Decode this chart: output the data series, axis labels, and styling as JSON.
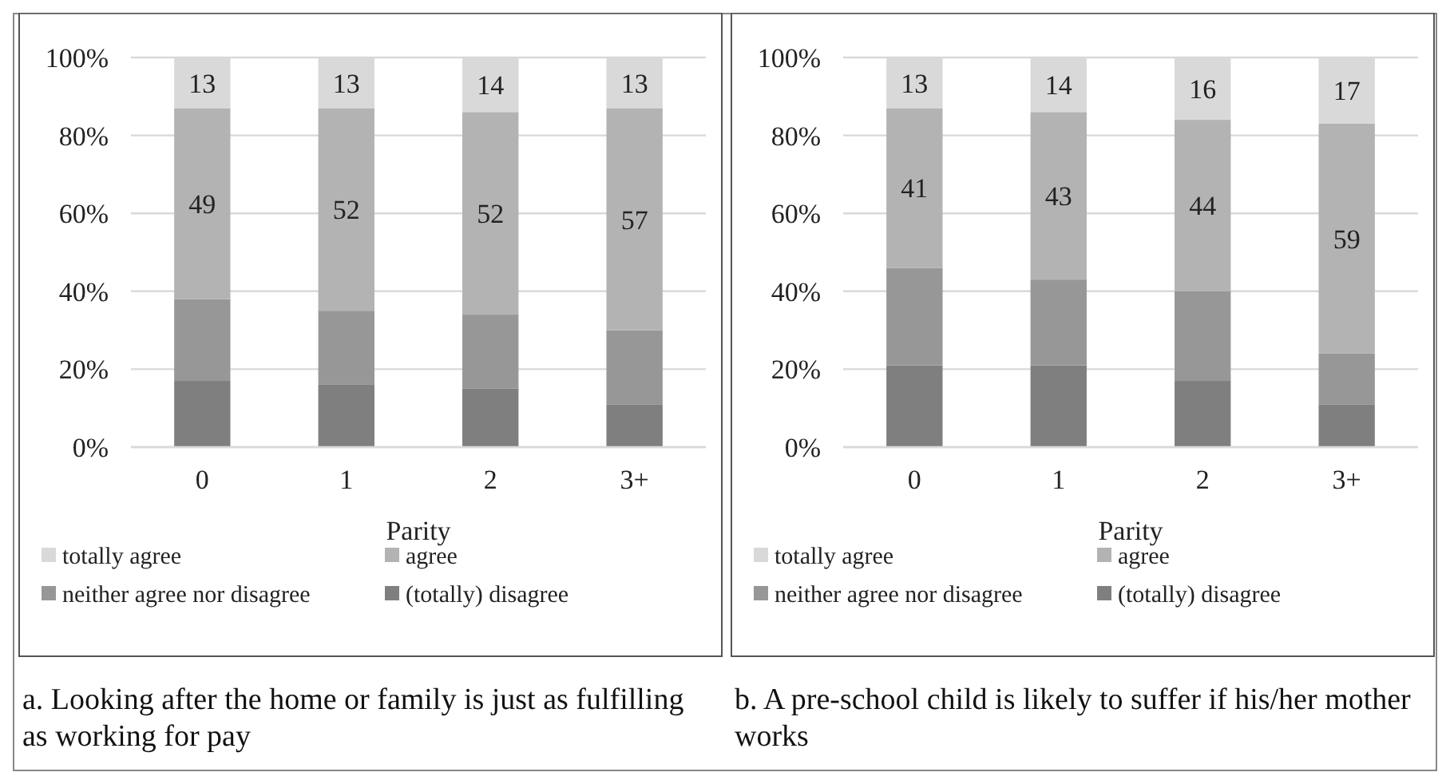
{
  "chart_data": [
    {
      "type": "bar",
      "stacked": true,
      "title": "a. Looking after the home or family is just as fulfilling as working for pay",
      "xlabel": "Parity",
      "categories": [
        "0",
        "1",
        "2",
        "3+"
      ],
      "ylim": [
        0,
        100
      ],
      "yticks": [
        {
          "value": 0,
          "label": "0%"
        },
        {
          "value": 20,
          "label": "20%"
        },
        {
          "value": 40,
          "label": "40%"
        },
        {
          "value": 60,
          "label": "60%"
        },
        {
          "value": 80,
          "label": "80%"
        },
        {
          "value": 100,
          "label": "100%"
        }
      ],
      "grid": "y",
      "legend": "bottom",
      "series": [
        {
          "name": "(totally) disagree",
          "color": "#7f7f7f",
          "values": [
            17,
            16,
            15,
            11
          ]
        },
        {
          "name": "neither agree nor disagree",
          "color": "#979797",
          "values": [
            21,
            19,
            19,
            19
          ]
        },
        {
          "name": "agree",
          "color": "#b3b3b3",
          "values": [
            49,
            52,
            52,
            57
          ],
          "value_labels": [
            "49",
            "52",
            "52",
            "57"
          ]
        },
        {
          "name": "totally agree",
          "color": "#d9d9d9",
          "values": [
            13,
            13,
            14,
            13
          ],
          "value_labels": [
            "13",
            "13",
            "14",
            "13"
          ]
        }
      ]
    },
    {
      "type": "bar",
      "stacked": true,
      "title": "b. A pre-school child is likely to suffer if his/her mother works",
      "xlabel": "Parity",
      "categories": [
        "0",
        "1",
        "2",
        "3+"
      ],
      "ylim": [
        0,
        100
      ],
      "yticks": [
        {
          "value": 0,
          "label": "0%"
        },
        {
          "value": 20,
          "label": "20%"
        },
        {
          "value": 40,
          "label": "40%"
        },
        {
          "value": 60,
          "label": "60%"
        },
        {
          "value": 80,
          "label": "80%"
        },
        {
          "value": 100,
          "label": "100%"
        }
      ],
      "grid": "y",
      "legend": "bottom",
      "series": [
        {
          "name": "(totally) disagree",
          "color": "#7f7f7f",
          "values": [
            21,
            21,
            17,
            11
          ]
        },
        {
          "name": "neither agree nor disagree",
          "color": "#979797",
          "values": [
            25,
            22,
            23,
            13
          ]
        },
        {
          "name": "agree",
          "color": "#b3b3b3",
          "values": [
            41,
            43,
            44,
            59
          ],
          "value_labels": [
            "41",
            "43",
            "44",
            "59"
          ]
        },
        {
          "name": "totally agree",
          "color": "#d9d9d9",
          "values": [
            13,
            14,
            16,
            17
          ],
          "value_labels": [
            "13",
            "14",
            "16",
            "17"
          ]
        }
      ]
    }
  ]
}
